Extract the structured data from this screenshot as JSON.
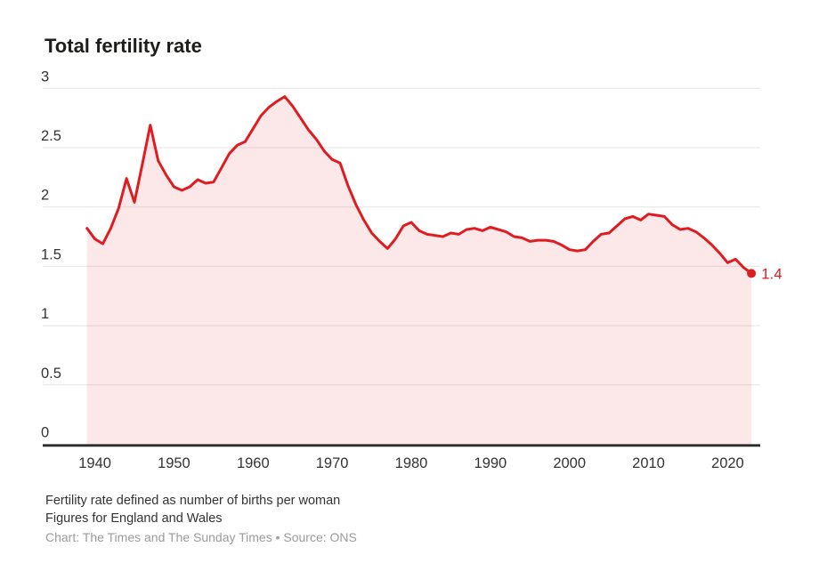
{
  "header": {
    "title": "Total fertility rate"
  },
  "chart_data": {
    "type": "area",
    "title": "Total fertility rate",
    "xlabel": "",
    "ylabel": "",
    "xlim": [
      1939,
      2023
    ],
    "ylim": [
      0,
      3
    ],
    "grid": "horizontal",
    "legend": "none",
    "line_color": "#df1c20",
    "area_fill_color": "rgba(223,28,32,0.10)",
    "gridline_color": "#e4e4e4",
    "axis_line_color": "#2b2b2b",
    "tick_label_color": "#333333",
    "x": [
      1939,
      1940,
      1941,
      1942,
      1943,
      1944,
      1945,
      1946,
      1947,
      1948,
      1949,
      1950,
      1951,
      1952,
      1953,
      1954,
      1955,
      1956,
      1957,
      1958,
      1959,
      1960,
      1961,
      1962,
      1963,
      1964,
      1965,
      1966,
      1967,
      1968,
      1969,
      1970,
      1971,
      1972,
      1973,
      1974,
      1975,
      1976,
      1977,
      1978,
      1979,
      1980,
      1981,
      1982,
      1983,
      1984,
      1985,
      1986,
      1987,
      1988,
      1989,
      1990,
      1991,
      1992,
      1993,
      1994,
      1995,
      1996,
      1997,
      1998,
      1999,
      2000,
      2001,
      2002,
      2003,
      2004,
      2005,
      2006,
      2007,
      2008,
      2009,
      2010,
      2011,
      2012,
      2013,
      2014,
      2015,
      2016,
      2017,
      2018,
      2019,
      2020,
      2021,
      2022,
      2023
    ],
    "series": [
      {
        "name": "Total fertility rate",
        "values": [
          1.82,
          1.73,
          1.69,
          1.82,
          1.99,
          2.24,
          2.04,
          2.36,
          2.69,
          2.39,
          2.27,
          2.17,
          2.14,
          2.17,
          2.23,
          2.2,
          2.21,
          2.33,
          2.45,
          2.52,
          2.55,
          2.66,
          2.77,
          2.84,
          2.89,
          2.93,
          2.85,
          2.75,
          2.65,
          2.57,
          2.47,
          2.4,
          2.37,
          2.18,
          2.02,
          1.89,
          1.78,
          1.71,
          1.65,
          1.73,
          1.84,
          1.87,
          1.8,
          1.77,
          1.76,
          1.75,
          1.78,
          1.77,
          1.81,
          1.82,
          1.8,
          1.83,
          1.81,
          1.79,
          1.75,
          1.74,
          1.71,
          1.72,
          1.72,
          1.71,
          1.68,
          1.64,
          1.63,
          1.64,
          1.71,
          1.77,
          1.78,
          1.84,
          1.9,
          1.92,
          1.89,
          1.94,
          1.93,
          1.92,
          1.85,
          1.81,
          1.82,
          1.79,
          1.74,
          1.68,
          1.61,
          1.53,
          1.56,
          1.49,
          1.44
        ]
      }
    ],
    "x_ticks": [
      "1940",
      "1950",
      "1960",
      "1970",
      "1980",
      "1990",
      "2000",
      "2010",
      "2020"
    ],
    "y_ticks": [
      "0",
      "0.5",
      "1",
      "1.5",
      "2",
      "2.5",
      "3"
    ],
    "end_label": "1.4"
  },
  "footer": {
    "note1": "Fertility rate defined as number of births per woman",
    "note2": "Figures for England and Wales",
    "credit": "Chart: The Times and The Sunday Times • Source: ONS"
  }
}
